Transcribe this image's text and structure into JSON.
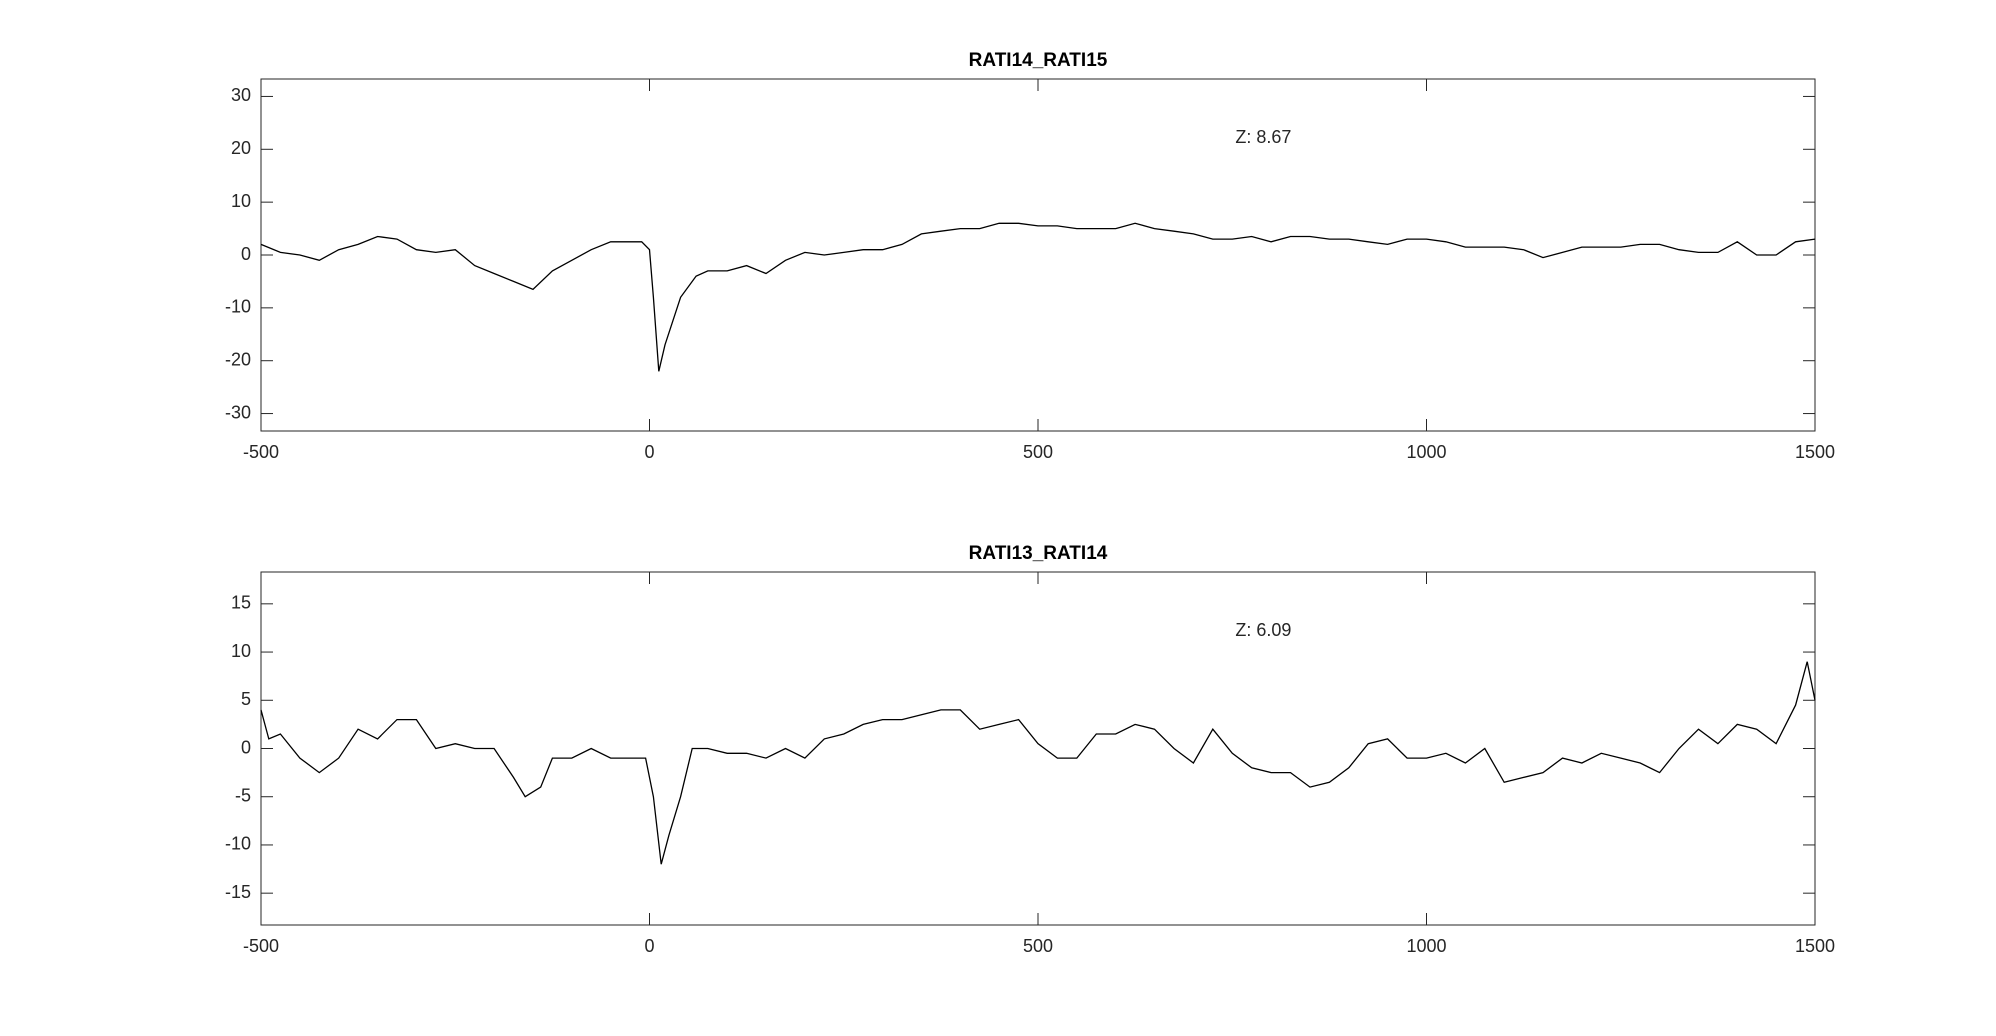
{
  "chart_data": [
    {
      "type": "line",
      "title": "RATI14_RATI15",
      "annotation": "Z: 8.67",
      "color": "#000000",
      "xlim": [
        -500,
        1500
      ],
      "xticks": [
        -500,
        0,
        500,
        1000,
        1500
      ],
      "ylim": [
        -33.3,
        33.3
      ],
      "yticks": [
        -30,
        -20,
        -10,
        0,
        10,
        20,
        30
      ],
      "x": [
        -500,
        -475,
        -450,
        -425,
        -400,
        -375,
        -350,
        -325,
        -300,
        -275,
        -250,
        -225,
        -200,
        -175,
        -150,
        -125,
        -100,
        -75,
        -50,
        -25,
        -10,
        0,
        5,
        12,
        20,
        40,
        60,
        75,
        100,
        125,
        150,
        175,
        200,
        225,
        250,
        275,
        300,
        325,
        350,
        375,
        400,
        425,
        450,
        475,
        500,
        525,
        550,
        575,
        600,
        625,
        650,
        675,
        700,
        725,
        750,
        775,
        800,
        825,
        850,
        875,
        900,
        925,
        950,
        975,
        1000,
        1025,
        1050,
        1075,
        1100,
        1125,
        1150,
        1175,
        1200,
        1225,
        1250,
        1275,
        1300,
        1325,
        1350,
        1375,
        1400,
        1425,
        1450,
        1475,
        1500
      ],
      "values": [
        2,
        0.5,
        0,
        -1,
        1,
        2,
        3.5,
        3,
        1,
        0.5,
        1,
        -2,
        -3.5,
        -5,
        -6.5,
        -3,
        -1,
        1,
        2.5,
        2.5,
        2.5,
        1,
        -8,
        -22,
        -17,
        -8,
        -4,
        -3,
        -3,
        -2,
        -3.5,
        -1,
        0.5,
        0,
        0.5,
        1,
        1,
        2,
        4,
        4.5,
        5,
        5,
        6,
        6,
        5.5,
        5.5,
        5,
        5,
        5,
        6,
        5,
        4.5,
        4,
        3,
        3,
        3.5,
        2.5,
        3.5,
        3.5,
        3,
        3,
        2.5,
        2,
        3,
        3,
        2.5,
        1.5,
        1.5,
        1.5,
        1,
        -0.5,
        0.5,
        1.5,
        1.5,
        1.5,
        2,
        2,
        1,
        0.5,
        0.5,
        2.5,
        0,
        0,
        2.5,
        3
      ]
    },
    {
      "type": "line",
      "title": "RATI13_RATI14",
      "annotation": "Z: 6.09",
      "color": "#000000",
      "xlim": [
        -500,
        1500
      ],
      "xticks": [
        -500,
        0,
        500,
        1000,
        1500
      ],
      "ylim": [
        -18.3,
        18.3
      ],
      "yticks": [
        -15,
        -10,
        -5,
        0,
        5,
        10,
        15
      ],
      "x": [
        -500,
        -490,
        -475,
        -450,
        -425,
        -400,
        -375,
        -350,
        -325,
        -300,
        -275,
        -250,
        -225,
        -200,
        -175,
        -160,
        -140,
        -125,
        -100,
        -75,
        -50,
        -25,
        -5,
        5,
        15,
        25,
        40,
        55,
        75,
        100,
        125,
        150,
        175,
        200,
        225,
        250,
        275,
        300,
        325,
        350,
        375,
        400,
        425,
        450,
        475,
        500,
        525,
        550,
        575,
        600,
        625,
        650,
        675,
        700,
        725,
        750,
        775,
        800,
        825,
        850,
        875,
        900,
        925,
        950,
        975,
        1000,
        1025,
        1050,
        1075,
        1100,
        1125,
        1150,
        1175,
        1200,
        1225,
        1250,
        1275,
        1300,
        1325,
        1350,
        1375,
        1400,
        1425,
        1450,
        1475,
        1490,
        1500
      ],
      "values": [
        4,
        1,
        1.5,
        -1,
        -2.5,
        -1,
        2,
        1,
        3,
        3,
        0,
        0.5,
        0,
        0,
        -3,
        -5,
        -4,
        -1,
        -1,
        0,
        -1,
        -1,
        -1,
        -5,
        -12,
        -9,
        -5,
        0,
        0,
        -0.5,
        -0.5,
        -1,
        0,
        -1,
        1,
        1.5,
        2.5,
        3,
        3,
        3.5,
        4,
        4,
        2,
        2.5,
        3,
        0.5,
        -1,
        -1,
        1.5,
        1.5,
        2.5,
        2,
        0,
        -1.5,
        2,
        -0.5,
        -2,
        -2.5,
        -2.5,
        -4,
        -3.5,
        -2,
        0.5,
        1,
        -1,
        -1,
        -0.5,
        -1.5,
        0,
        -3.5,
        -3,
        -2.5,
        -1,
        -1.5,
        -0.5,
        -1,
        -1.5,
        -2.5,
        0,
        2,
        0.5,
        2.5,
        2,
        0.5,
        4.5,
        9,
        5
      ]
    }
  ]
}
